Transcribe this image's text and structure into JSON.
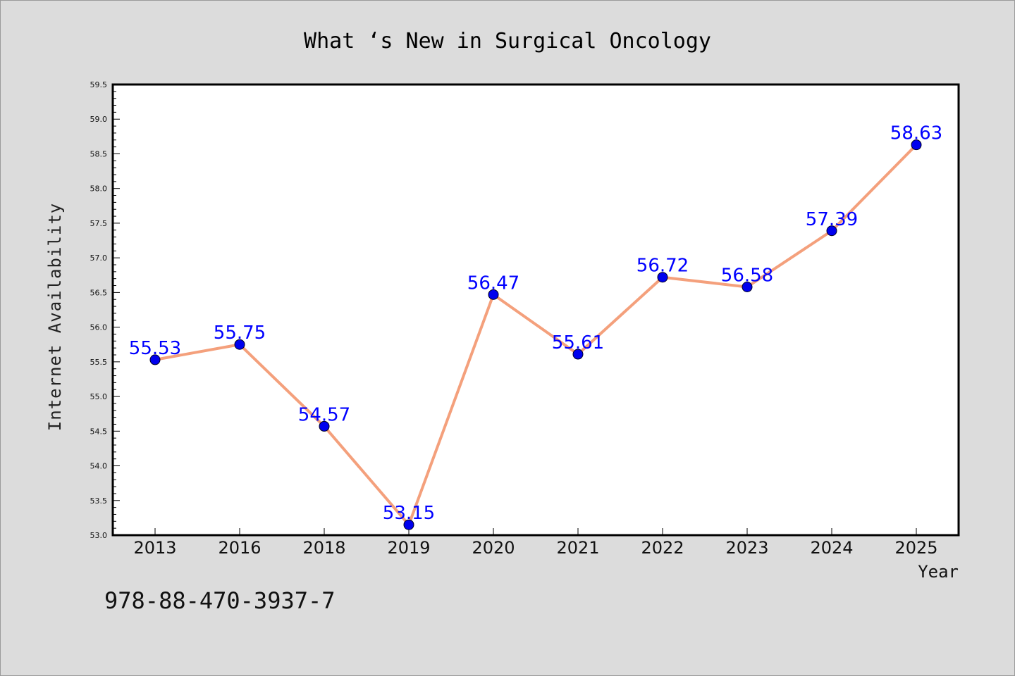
{
  "chart_data": {
    "type": "line",
    "title": "What ‘s New in Surgical Oncology",
    "xlabel": "Year",
    "ylabel": "Internet Availability",
    "categories": [
      "2013",
      "2016",
      "2018",
      "2019",
      "2020",
      "2021",
      "2022",
      "2023",
      "2024",
      "2025"
    ],
    "series": [
      {
        "values": [
          55.53,
          55.75,
          54.57,
          53.15,
          56.47,
          55.61,
          56.72,
          56.58,
          57.39,
          58.63
        ],
        "labels": [
          "55.53",
          "55.75",
          "54.57",
          "53.15",
          "56.47",
          "55.61",
          "56.72",
          "56.58",
          "57.39",
          "58.63"
        ]
      }
    ],
    "ylim": [
      53.0,
      59.5
    ],
    "yticks": [
      "53.0",
      "53.5",
      "54.0",
      "54.5",
      "55.0",
      "55.5",
      "56.0",
      "56.5",
      "57.0",
      "57.5",
      "58.0",
      "58.5",
      "59.0",
      "59.5"
    ],
    "grid": false,
    "legend": "none",
    "colors": {
      "line": "#f4a07c",
      "marker": "#0000ee",
      "label": "#0000ff",
      "background": "#dcdcdc",
      "plot_background": "#ffffff"
    }
  },
  "annotation": "978-88-470-3937-7"
}
